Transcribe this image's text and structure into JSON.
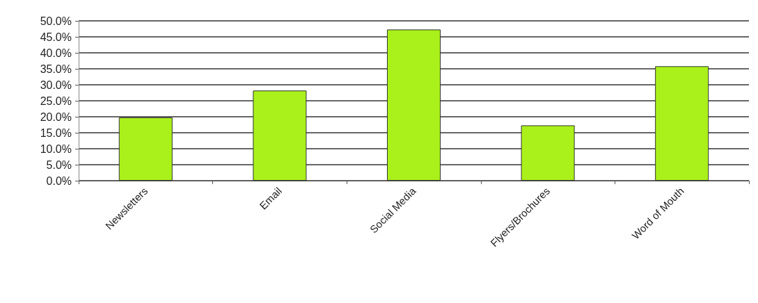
{
  "chart_data": {
    "type": "bar",
    "categories": [
      "Newsletters",
      "Email",
      "Social Media",
      "Flyers/Brochures",
      "Word of Mouth"
    ],
    "values": [
      19.8,
      28.2,
      47.3,
      17.3,
      35.8
    ],
    "color": "#aaf01a",
    "ylim": [
      0,
      50
    ],
    "yticks": [
      {
        "value": 0,
        "label": "0.0%"
      },
      {
        "value": 5,
        "label": "5.0%"
      },
      {
        "value": 10,
        "label": "10.0%"
      },
      {
        "value": 15,
        "label": "15.0%"
      },
      {
        "value": 20,
        "label": "20.0%"
      },
      {
        "value": 25,
        "label": "25.0%"
      },
      {
        "value": 30,
        "label": "30.0%"
      },
      {
        "value": 35,
        "label": "35.0%"
      },
      {
        "value": 40,
        "label": "40.0%"
      },
      {
        "value": 45,
        "label": "45.0%"
      },
      {
        "value": 50,
        "label": "50.0%"
      }
    ],
    "grid": "y"
  }
}
